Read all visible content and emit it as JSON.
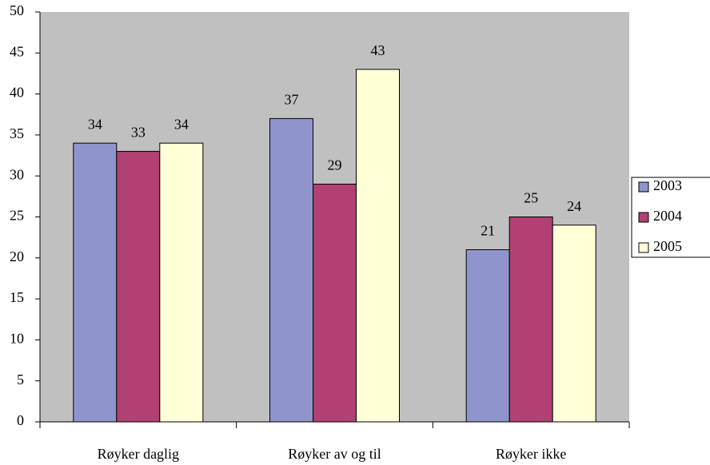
{
  "chart_data": {
    "type": "bar",
    "categories": [
      "Røyker daglig",
      "Røyker av og til",
      "Røyker ikke"
    ],
    "series": [
      {
        "name": "2003",
        "color": "#8f95cc",
        "values": [
          34,
          37,
          21
        ]
      },
      {
        "name": "2004",
        "color": "#b04172",
        "values": [
          33,
          29,
          25
        ]
      },
      {
        "name": "2005",
        "color": "#ffffd8",
        "values": [
          34,
          43,
          24
        ]
      }
    ],
    "ylim": [
      0,
      50
    ],
    "yticks": [
      0,
      5,
      10,
      15,
      20,
      25,
      30,
      35,
      40,
      45,
      50
    ],
    "legend": "right",
    "background": "#c0c0c0"
  }
}
